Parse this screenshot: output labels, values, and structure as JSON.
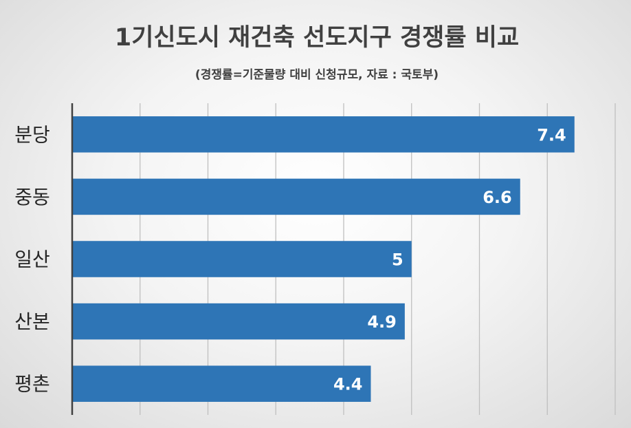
{
  "chart_data": {
    "type": "bar",
    "orientation": "horizontal",
    "title": "1기신도시 재건축 선도지구 경쟁률 비교",
    "subtitle": "(경쟁률=기준물량 대비 신청규모, 자료 : 국토부)",
    "categories": [
      "분당",
      "중동",
      "일산",
      "산본",
      "평촌"
    ],
    "values": [
      7.4,
      6.6,
      5,
      4.9,
      4.4
    ],
    "value_labels": [
      "7.4",
      "6.6",
      "5",
      "4.9",
      "4.4"
    ],
    "xlim": [
      0,
      8
    ],
    "grid": true,
    "legend": "none",
    "xlabel": "",
    "ylabel": "",
    "bar_color": "#2E75B6"
  }
}
